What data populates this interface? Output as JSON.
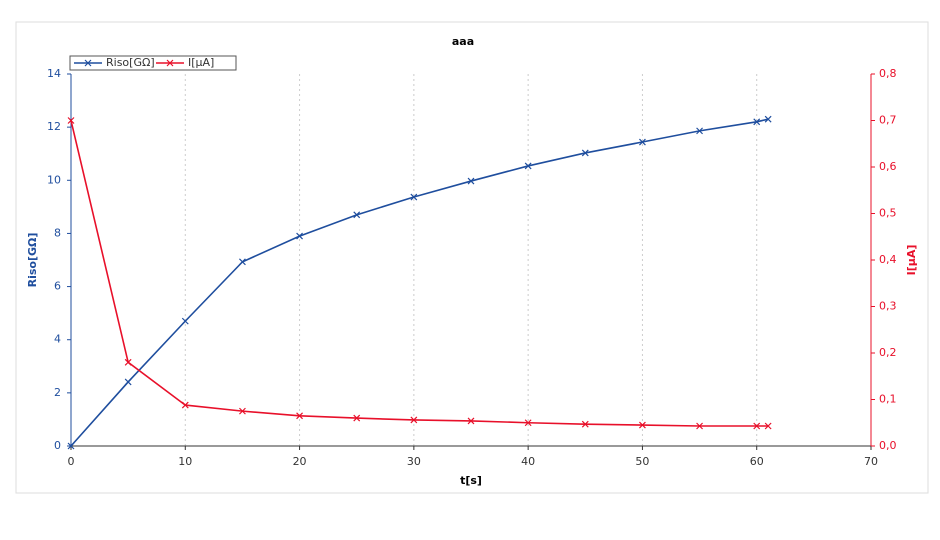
{
  "chart_data": {
    "type": "line",
    "title": "aaa",
    "x_label": "t[s]",
    "y_label": "Riso[GΩ]",
    "y2_label": "I[µA]",
    "x": [
      0,
      5,
      10,
      15,
      20,
      25,
      30,
      35,
      40,
      45,
      50,
      55,
      60,
      61
    ],
    "series": [
      {
        "name": "Riso[GΩ]",
        "color": "#1f4e9e",
        "values": [
          0,
          2.41,
          4.7,
          6.93,
          7.9,
          8.7,
          9.37,
          9.97,
          10.54,
          11.03,
          11.44,
          11.86,
          12.2,
          12.3
        ]
      },
      {
        "name": "I[µA]",
        "color": "#e8102a",
        "axis": "y2",
        "values": [
          0.7,
          0.18,
          0.088,
          0.075,
          0.065,
          0.06,
          0.056,
          0.054,
          0.05,
          0.047,
          0.045,
          0.043,
          0.043,
          0.043
        ]
      }
    ],
    "xlim": [
      0,
      70
    ],
    "xticks": [
      0,
      10,
      20,
      30,
      40,
      50,
      60,
      70
    ],
    "ylim": [
      0,
      14
    ],
    "yticks": [
      0,
      2,
      4,
      6,
      8,
      10,
      12,
      14
    ],
    "y2lim": [
      0,
      0.8
    ],
    "y2ticks": [
      {
        "value": 0,
        "label": "0,0"
      },
      {
        "value": 0.1,
        "label": "0,1"
      },
      {
        "value": 0.2,
        "label": "0,2"
      },
      {
        "value": 0.3,
        "label": "0,3"
      },
      {
        "value": 0.4,
        "label": "0,4"
      },
      {
        "value": 0.5,
        "label": "0,5"
      },
      {
        "value": 0.6,
        "label": "0,6"
      },
      {
        "value": 0.7,
        "label": "0,7"
      },
      {
        "value": 0.8,
        "label": "0,8"
      }
    ],
    "grid": true,
    "legend": "top-left"
  }
}
